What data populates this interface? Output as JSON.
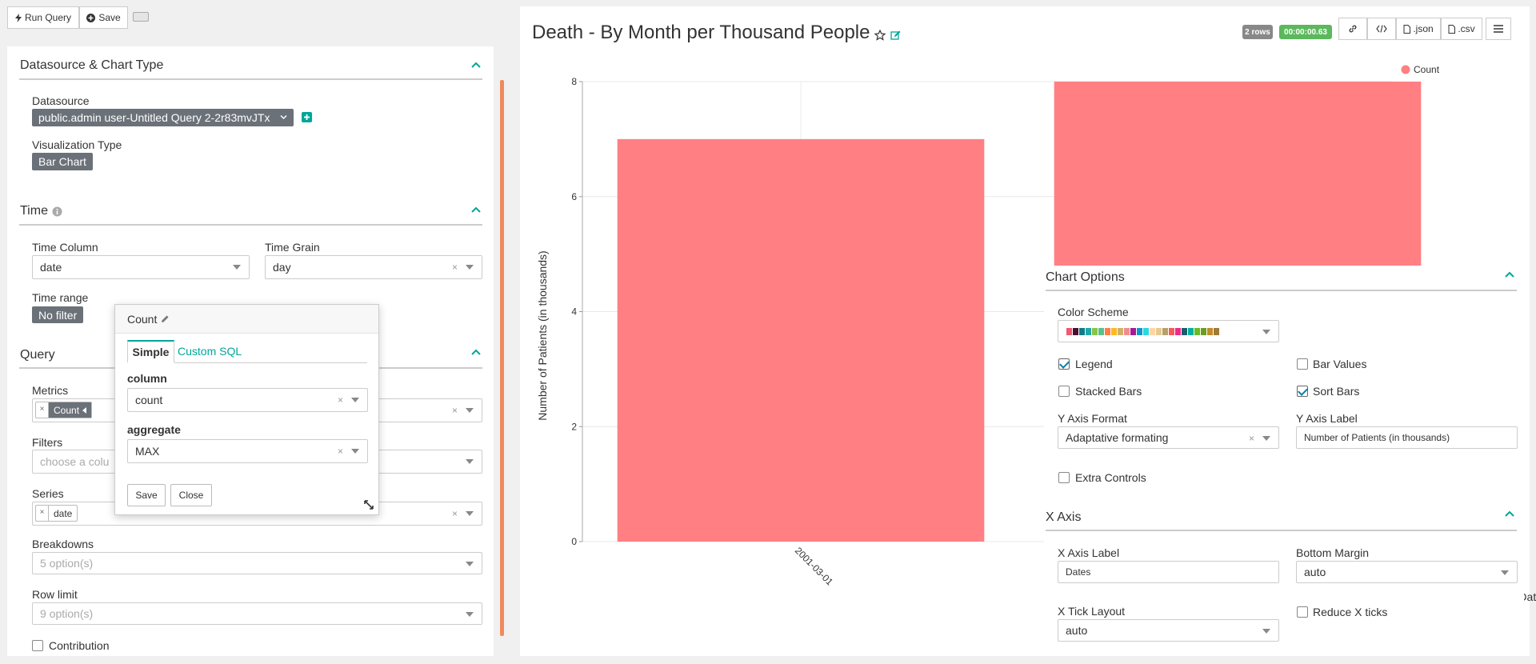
{
  "toolbar": {
    "run_query": "Run Query",
    "save": "Save"
  },
  "datasource_section": {
    "title": "Datasource & Chart Type",
    "datasource_label": "Datasource",
    "datasource_value": "public.admin user-Untitled Query 2-2r83mvJTx",
    "viz_label": "Visualization Type",
    "viz_value": "Bar Chart"
  },
  "time_section": {
    "title": "Time",
    "time_column_label": "Time Column",
    "time_column_value": "date",
    "time_grain_label": "Time Grain",
    "time_grain_value": "day",
    "time_range_label": "Time range",
    "time_range_value": "No filter"
  },
  "query_section": {
    "title": "Query",
    "metrics_label": "Metrics",
    "metric_chip": "Count",
    "filters_label": "Filters",
    "filters_placeholder": "choose a colu",
    "series_label": "Series",
    "series_chip": "date",
    "breakdowns_label": "Breakdowns",
    "breakdowns_placeholder": "5 option(s)",
    "row_limit_label": "Row limit",
    "row_limit_placeholder": "9 option(s)",
    "contribution_label": "Contribution"
  },
  "metric_popover": {
    "title": "Count",
    "tab_simple": "Simple",
    "tab_custom_sql": "Custom SQL",
    "column_label": "column",
    "column_value": "count",
    "aggregate_label": "aggregate",
    "aggregate_value": "MAX",
    "save": "Save",
    "close": "Close"
  },
  "chart_header": {
    "title": "Death - By Month per Thousand People",
    "rows_badge": "2 rows",
    "time_badge": "00:00:00.63",
    "json_label": ".json",
    "csv_label": ".csv"
  },
  "chart_data": {
    "type": "bar",
    "categories": [
      "2001-03-01",
      ""
    ],
    "series": [
      {
        "name": "Count",
        "values": [
          7,
          8
        ]
      }
    ],
    "xlabel": "Dates",
    "ylabel": "Number of Patients (in thousands)",
    "ylim": [
      0,
      8
    ],
    "yticks": [
      "0",
      "2",
      "4",
      "6",
      "8"
    ],
    "legend": "top-right",
    "grid": true,
    "color": "#ff7f83"
  },
  "chart_options": {
    "title": "Chart Options",
    "color_scheme_label": "Color Scheme",
    "legend_label": "Legend",
    "bar_values_label": "Bar Values",
    "stacked_bars_label": "Stacked Bars",
    "sort_bars_label": "Sort Bars",
    "y_axis_format_label": "Y Axis Format",
    "y_axis_format_value": "Adaptative formating",
    "y_axis_label_label": "Y Axis Label",
    "y_axis_label_value": "Number of Patients (in thousands)",
    "extra_controls_label": "Extra Controls"
  },
  "x_axis_section": {
    "title": "X Axis",
    "x_axis_label_label": "X Axis Label",
    "x_axis_label_value": "Dates",
    "bottom_margin_label": "Bottom Margin",
    "bottom_margin_value": "auto",
    "x_tick_layout_label": "X Tick Layout",
    "x_tick_layout_value": "auto",
    "reduce_x_ticks_label": "Reduce X ticks"
  },
  "colors": {
    "accent": "#00a699",
    "bar": "#ff7f83",
    "tag": "#6b7178",
    "scrollbar": "#f08a5d"
  },
  "color_scheme_swatches": [
    "#ee5a6f",
    "#4b0e2e",
    "#0e7c86",
    "#1fa8a8",
    "#8bc34a",
    "#5ac189",
    "#ff7f44",
    "#ffb822",
    "#cdb26e",
    "#f28c8c",
    "#a61c8f",
    "#0c99c9",
    "#2ad9e1",
    "#ffd5a6",
    "#e5c98e",
    "#b6a06a",
    "#f65a5a",
    "#e92c8a",
    "#1b5e69",
    "#00b0a0",
    "#66bb2a",
    "#6b9e1f",
    "#c48b29",
    "#9e7b3a"
  ]
}
